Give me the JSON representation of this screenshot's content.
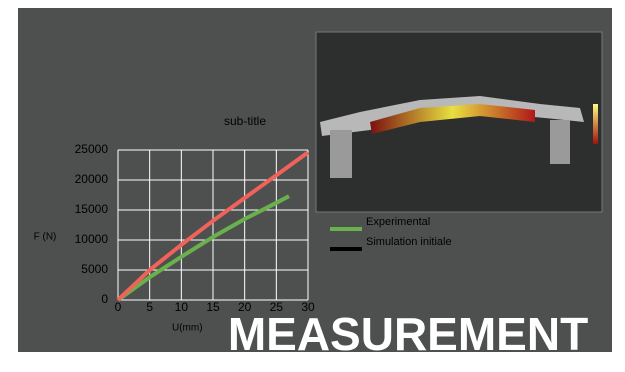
{
  "chart_data": {
    "type": "line",
    "subtitle": "sub-title",
    "x_label": "U(mm)",
    "y_label": "F (N)",
    "xlim": [
      0,
      30
    ],
    "ylim": [
      0,
      25000
    ],
    "xticks": [
      0,
      5,
      10,
      15,
      20,
      25,
      30
    ],
    "yticks": [
      0,
      5000,
      10000,
      15000,
      20000,
      25000
    ],
    "grid": true,
    "series": [
      {
        "name": "Experimental",
        "color": "#6ab04c",
        "legend_color": "#6ab04c",
        "x": [
          0,
          5,
          10,
          15,
          20,
          25,
          27
        ],
        "values": [
          0,
          3800,
          7200,
          10500,
          13500,
          16200,
          17300
        ]
      },
      {
        "name": "Simulation initiale",
        "color": "#f0625a",
        "legend_color": "#000000",
        "x": [
          0,
          5,
          10,
          15,
          20,
          25,
          30
        ],
        "values": [
          0,
          5000,
          9200,
          13200,
          17000,
          20800,
          24600
        ]
      }
    ]
  },
  "banner": "MEASUREMENT"
}
